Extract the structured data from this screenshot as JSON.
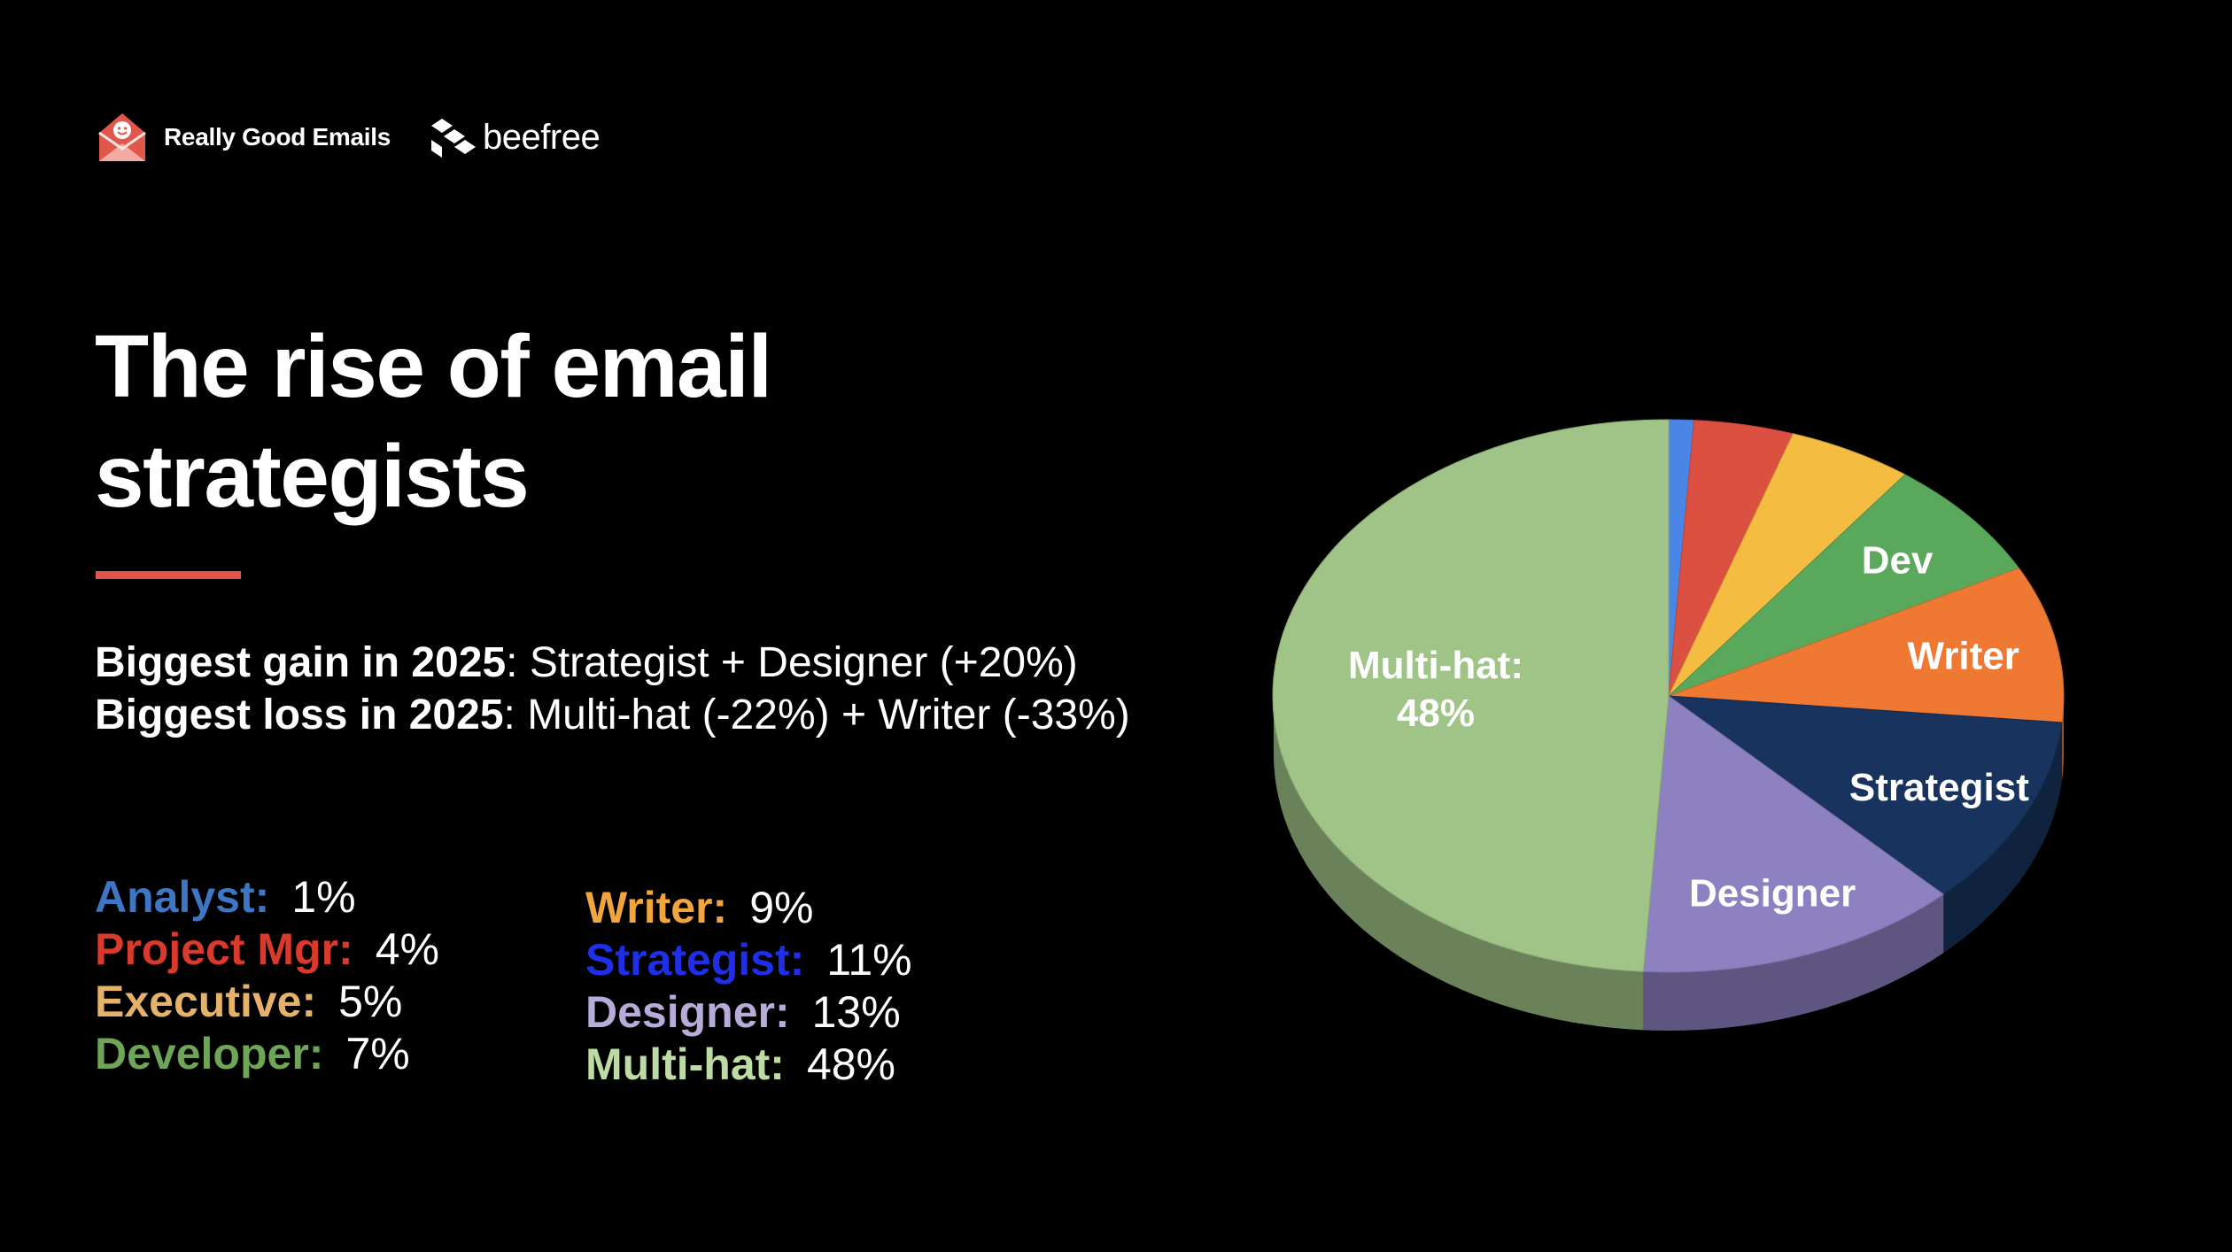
{
  "brand": {
    "rge_name": "Really Good Emails",
    "bee_name": "beefree"
  },
  "title": "The rise of email strategists",
  "findings": {
    "gain_label": "Biggest gain in 2025",
    "gain_value": ": Strategist + Designer (+20%)",
    "loss_label": "Biggest loss in 2025",
    "loss_value": ": Multi-hat (-22%) + Writer (-33%)"
  },
  "legend": {
    "col1": [
      {
        "name": "Analyst:",
        "value": "1%",
        "color": "#3d76c4"
      },
      {
        "name": "Project Mgr:",
        "value": "4%",
        "color": "#d93a2c"
      },
      {
        "name": "Executive:",
        "value": "5%",
        "color": "#e6b26a"
      },
      {
        "name": "Developer:",
        "value": "7%",
        "color": "#6fa556"
      }
    ],
    "col2": [
      {
        "name": "Writer:",
        "value": "9%",
        "color": "#f2a53c"
      },
      {
        "name": "Strategist:",
        "value": "11%",
        "color": "#1f2fe8"
      },
      {
        "name": "Designer:",
        "value": "13%",
        "color": "#b7acd9"
      },
      {
        "name": "Multi-hat:",
        "value": "48%",
        "color": "#bddca4"
      }
    ]
  },
  "chart_data": {
    "type": "pie",
    "title": "",
    "slices": [
      {
        "name": "Analyst",
        "value": 1,
        "color": "#4a86e8",
        "label": ""
      },
      {
        "name": "Project Mgr",
        "value": 4,
        "color": "#dc5042",
        "label": ""
      },
      {
        "name": "Executive",
        "value": 5,
        "color": "#f4bd42",
        "label": ""
      },
      {
        "name": "Developer",
        "value": 7,
        "color": "#5aa85c",
        "label": "Dev"
      },
      {
        "name": "Writer",
        "value": 9,
        "color": "#ef7932",
        "label": "Writer"
      },
      {
        "name": "Strategist",
        "value": 11,
        "color": "#17335e",
        "label": "Strategist"
      },
      {
        "name": "Designer",
        "value": 13,
        "color": "#8e81c2",
        "label": "Designer"
      },
      {
        "name": "Multi-hat",
        "value": 48,
        "color": "#a0c487",
        "label": "Multi-hat:",
        "label2": "48%"
      }
    ]
  }
}
